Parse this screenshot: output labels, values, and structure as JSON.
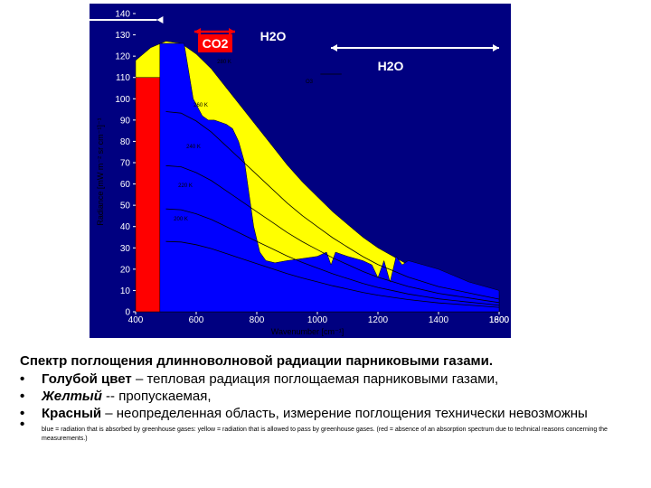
{
  "chart_data": {
    "type": "area",
    "ylabel": "Radiance [mW m⁻² sr cm⁻¹]⁻¹",
    "xlabel": "Wavenumber [cm⁻¹]",
    "xlim": [
      400,
      1600
    ],
    "ylim": [
      0,
      140
    ],
    "x_ticks": [
      "400",
      "600",
      "800",
      "1000",
      "1200",
      "1400",
      "1600",
      "1800"
    ],
    "y_ticks": [
      "0",
      "10",
      "20",
      "30",
      "40",
      "50",
      "60",
      "70",
      "80",
      "90",
      "100",
      "110",
      "120",
      "130",
      "140"
    ],
    "gas_labels": [
      {
        "text": "CO2",
        "wavenumber": 690
      },
      {
        "text": "H2O",
        "wavenumber": 800
      },
      {
        "text": "H2O",
        "wavenumber": 1450
      },
      {
        "text": "O3",
        "wavenumber": 1042
      }
    ],
    "temperature_labels": [
      "280 K",
      "260 K",
      "240 K",
      "220 K",
      "200 K"
    ],
    "colors": {
      "background": "#000080",
      "thermal_curve": "#ffff00",
      "absorbed": "#0000ff",
      "undetermined": "#ff0000",
      "arrow": "#ffffff"
    },
    "series": [
      {
        "color": "yellow",
        "x": [
          400,
          450,
          500,
          550,
          600,
          650,
          700,
          750,
          800,
          850,
          900,
          950,
          1000,
          1050,
          1100,
          1150,
          1200,
          1250,
          1300,
          1350,
          1400,
          1450,
          1500,
          1550,
          1600
        ],
        "y": [
          118,
          124,
          127,
          126,
          121,
          114,
          105,
          96,
          87,
          78,
          69,
          61,
          54,
          47,
          41,
          35,
          30,
          26,
          22,
          19,
          16,
          14,
          12,
          10,
          8
        ]
      },
      {
        "color": "blue",
        "x": [
          480,
          560,
          590,
          620,
          640,
          660,
          680,
          700,
          720,
          740,
          760,
          775,
          790,
          810,
          830,
          860,
          900,
          950,
          1000,
          1030,
          1045,
          1060,
          1080,
          1100,
          1150,
          1180,
          1200,
          1220,
          1240,
          1260,
          1280,
          1300,
          1350,
          1400,
          1450,
          1500,
          1550,
          1600
        ],
        "y": [
          126,
          126,
          100,
          92,
          90,
          90,
          89,
          88,
          86,
          80,
          70,
          55,
          40,
          28,
          24,
          23,
          24,
          25,
          26,
          28,
          22,
          28,
          27,
          26,
          24,
          22,
          16,
          24,
          14,
          26,
          22,
          24,
          22,
          20,
          17,
          14,
          12,
          10
        ]
      }
    ]
  },
  "caption": {
    "title": "Спектр поглощения длинноволновой радиации парниковыми газами.",
    "items": [
      {
        "bullet": "•",
        "word": "Голубой цвет",
        "rest": " – тепловая радиация поглощаемая парниковыми газами,"
      },
      {
        "bullet": "•",
        "word": "Желтый",
        "rest": " -- пропускаемая,"
      },
      {
        "bullet": "•",
        "word": "Красный",
        "rest": " – неопределенная область, измерение поглощения технически невозможны"
      }
    ],
    "note_bullet": "•",
    "note": "blue = radiation that is absorbed by greenhouse gases: yellow = radiation that is allowed to pass by greenhouse gases. (red = absence of an absorption spectrum due to technical reasons concerning the measurements.)"
  }
}
